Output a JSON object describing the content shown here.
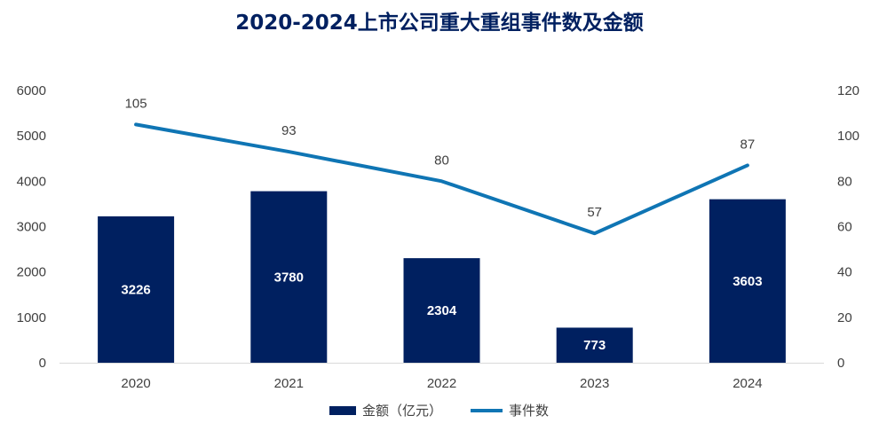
{
  "chart_data": {
    "type": "bar",
    "title": "2020-2024上市公司重大重组事件数及金额",
    "categories": [
      "2020",
      "2021",
      "2022",
      "2023",
      "2024"
    ],
    "series": [
      {
        "name": "金额（亿元）",
        "type": "bar",
        "axis": "left",
        "values": [
          3226,
          3780,
          2304,
          773,
          3603
        ],
        "color": "#002060"
      },
      {
        "name": "事件数",
        "type": "line",
        "axis": "right",
        "values": [
          105,
          93,
          80,
          57,
          87
        ],
        "color": "#0F75B4"
      }
    ],
    "y_left": {
      "min": 0,
      "max": 6000,
      "ticks": [
        "0",
        "1000",
        "2000",
        "3000",
        "4000",
        "5000",
        "6000"
      ]
    },
    "y_right": {
      "min": 0,
      "max": 120,
      "ticks": [
        "0",
        "20",
        "40",
        "60",
        "80",
        "100",
        "120"
      ]
    },
    "grid": false,
    "legend_position": "bottom"
  }
}
